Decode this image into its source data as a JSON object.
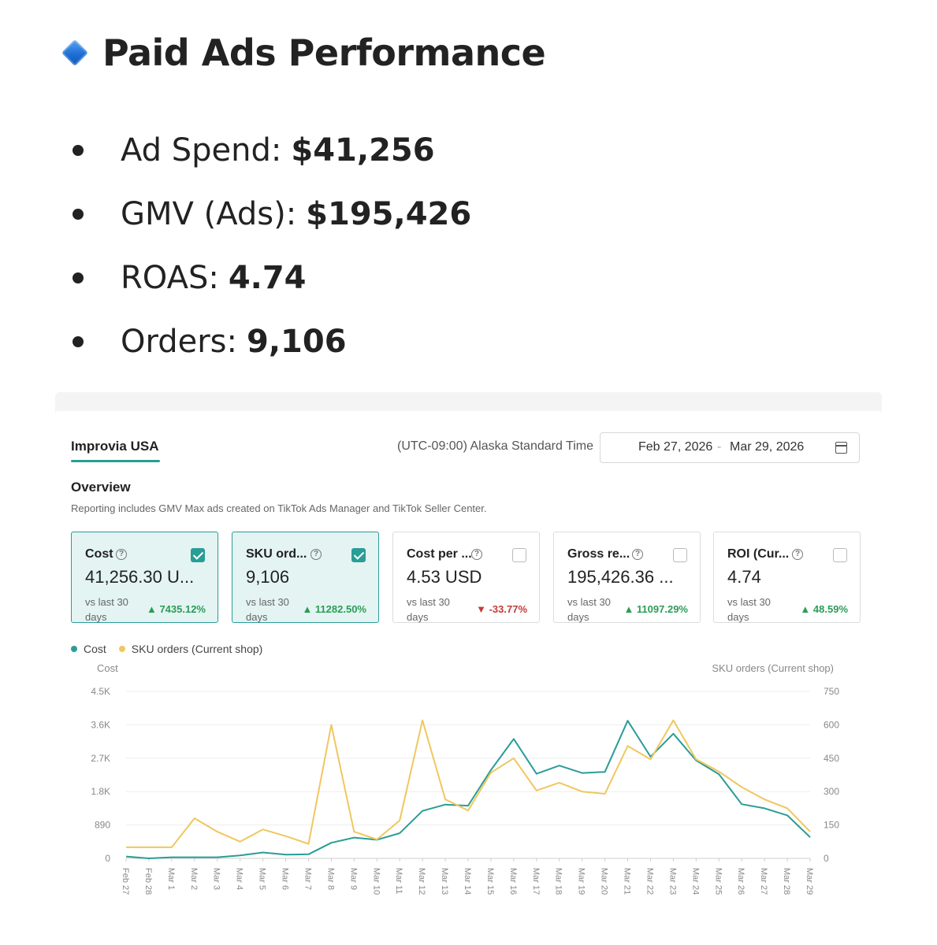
{
  "heading": {
    "icon": "blue-diamond-icon",
    "title": "Paid Ads Performance"
  },
  "bullets": [
    {
      "label": "Ad Spend:",
      "value": "$41,256"
    },
    {
      "label": "GMV (Ads):",
      "value": "$195,426"
    },
    {
      "label": "ROAS:",
      "value": "4.74"
    },
    {
      "label": "Orders:",
      "value": "9,106"
    }
  ],
  "dashboard": {
    "tab": "Improvia USA",
    "timezone": "(UTC-09:00) Alaska Standard Time",
    "date_start": "Feb 27, 2026",
    "date_separator": "-",
    "date_end": "Mar 29, 2026",
    "overview_title": "Overview",
    "overview_note": "Reporting includes GMV Max ads created on TikTok Ads Manager and TikTok Seller Center.",
    "cards": [
      {
        "label": "Cost",
        "value": "41,256.30 U...",
        "vs": "vs last 30 days",
        "change": "7435.12%",
        "direction": "up",
        "selected": true
      },
      {
        "label": "SKU ord...",
        "value": "9,106",
        "vs": "vs last 30 days",
        "change": "11282.50%",
        "direction": "up",
        "selected": true
      },
      {
        "label": "Cost per ...",
        "value": "4.53 USD",
        "vs": "vs last 30 days",
        "change": "-33.77%",
        "direction": "down",
        "selected": false
      },
      {
        "label": "Gross re...",
        "value": "195,426.36 ...",
        "vs": "vs last 30 days",
        "change": "11097.29%",
        "direction": "up",
        "selected": false
      },
      {
        "label": "ROI (Cur...",
        "value": "4.74",
        "vs": "vs last 30 days",
        "change": "48.59%",
        "direction": "up",
        "selected": false
      }
    ],
    "colors": {
      "accent": "#2a9d96",
      "cost_line": "#2a9d96",
      "orders_line": "#f0c75e",
      "positive": "#2a9d55",
      "negative": "#c43a3a"
    }
  },
  "chart_data": {
    "type": "line",
    "legend_placement": "top-left",
    "grid": true,
    "x": [
      "Feb 27",
      "Feb 28",
      "Mar 1",
      "Mar 2",
      "Mar 3",
      "Mar 4",
      "Mar 5",
      "Mar 6",
      "Mar 7",
      "Mar 8",
      "Mar 9",
      "Mar 10",
      "Mar 11",
      "Mar 12",
      "Mar 13",
      "Mar 14",
      "Mar 15",
      "Mar 16",
      "Mar 17",
      "Mar 18",
      "Mar 19",
      "Mar 20",
      "Mar 21",
      "Mar 22",
      "Mar 23",
      "Mar 24",
      "Mar 25",
      "Mar 26",
      "Mar 27",
      "Mar 28",
      "Mar 29"
    ],
    "left_axis": {
      "label": "Cost",
      "ticks": [
        "0",
        "890",
        "1.8K",
        "2.7K",
        "3.6K",
        "4.5K"
      ],
      "range": [
        0,
        4500
      ]
    },
    "right_axis": {
      "label": "SKU orders (Current shop)",
      "ticks": [
        "0",
        "150",
        "300",
        "450",
        "600",
        "750"
      ],
      "range": [
        0,
        750
      ]
    },
    "series": [
      {
        "name": "Cost",
        "axis": "left",
        "color": "#2a9d96",
        "values": [
          50,
          0,
          30,
          30,
          30,
          80,
          160,
          100,
          110,
          420,
          560,
          500,
          680,
          1280,
          1450,
          1420,
          2380,
          3220,
          2280,
          2500,
          2300,
          2330,
          3710,
          2740,
          3360,
          2640,
          2270,
          1460,
          1350,
          1160,
          570
        ]
      },
      {
        "name": "SKU orders (Current shop)",
        "axis": "left_secondary",
        "color": "#f0c75e",
        "values": [
          50,
          50,
          50,
          180,
          120,
          75,
          130,
          100,
          65,
          600,
          120,
          85,
          170,
          620,
          265,
          215,
          385,
          450,
          305,
          340,
          300,
          290,
          505,
          445,
          620,
          445,
          390,
          320,
          265,
          225,
          120
        ]
      }
    ]
  }
}
